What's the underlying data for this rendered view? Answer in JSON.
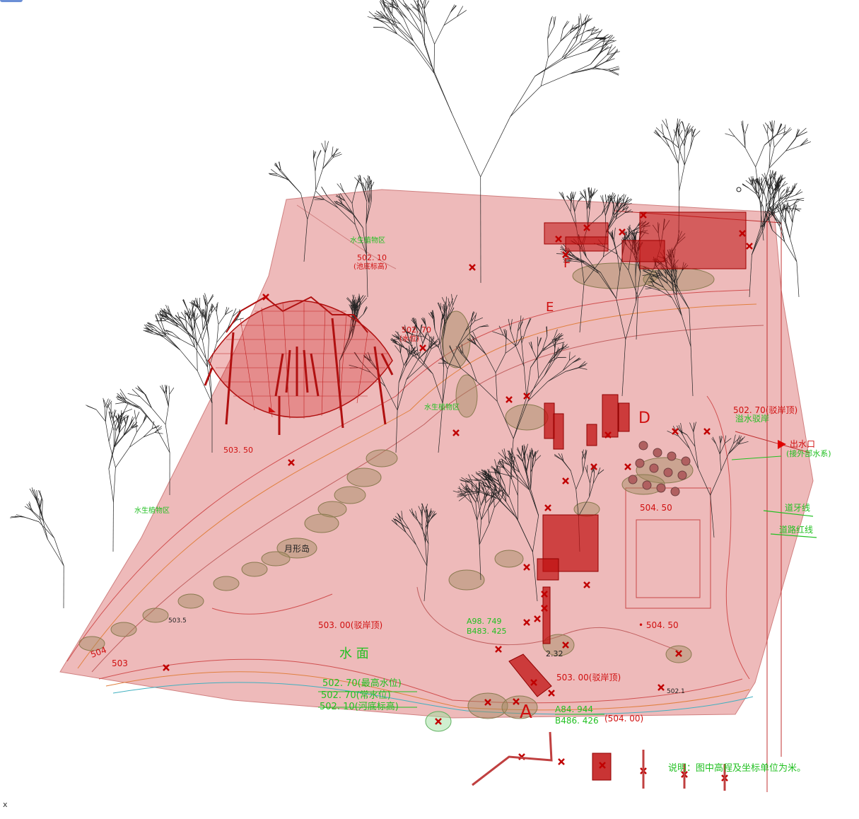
{
  "viewport": {
    "axis_indicator": "x",
    "colors": {
      "terrain": "#e8a0a0",
      "annotation_red": "#d01010",
      "annotation_green": "#22c022",
      "tree_line": "#222222",
      "structure_red": "#b01010"
    }
  },
  "labels": {
    "water_surface": "水  面",
    "crescent_island": "月形岛",
    "max_water": "502. 70(最高水位)",
    "normal_water": "502. 70(常水位)",
    "river_bottom": "502. 10(河底标高)",
    "bank_top_left": "503. 00(驳岸顶)",
    "bank_top_bottom": "503. 00(驳岸顶)",
    "bank_top_right": "502. 70(驳岸顶)",
    "overflow_bank": "溢水驳岸",
    "outlet": "出水口",
    "outlet_note": "(接外部水系)",
    "curb_line": "道牙线",
    "road_red_line": "道路红线",
    "coord_a": "A84. 944",
    "coord_b": "B486. 426",
    "elev_504": "(504. 00)",
    "coord_a2": "A98. 749",
    "coord_b2": "B483. 425",
    "elev_50450_a": "504. 50",
    "elev_50450_b": "• 504. 50",
    "elev_50350": "503. 50",
    "elev_50210": "502. 10",
    "pool_bottom": "(池底标高)",
    "elev_50270": "502. 70",
    "water_level": "(水位)",
    "aquatic_area": "水生植物区",
    "aquatic_area2": "水生植物区",
    "aquatic_area3": "水生植物区",
    "letter_a": "A",
    "letter_d": "D",
    "letter_e": "E",
    "letter_f": "F",
    "contour_504": "504",
    "contour_503": "503",
    "contour_5035": "503.5",
    "contour_5021": "502.1",
    "elev_232": "2.32",
    "note": "说明：图中高程及坐标单位为米。"
  }
}
